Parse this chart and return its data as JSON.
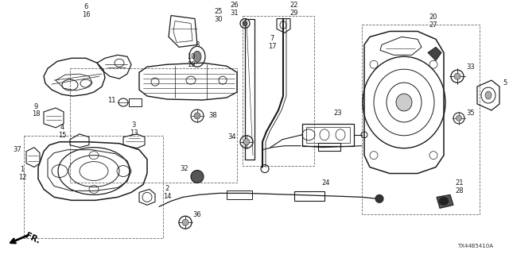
{
  "bg_color": "#ffffff",
  "line_color": "#1a1a1a",
  "diagram_code": "TX44B5410A",
  "fig_w": 6.4,
  "fig_h": 3.2,
  "dpi": 100,
  "label_fs": 6.0,
  "code_fs": 5.5
}
